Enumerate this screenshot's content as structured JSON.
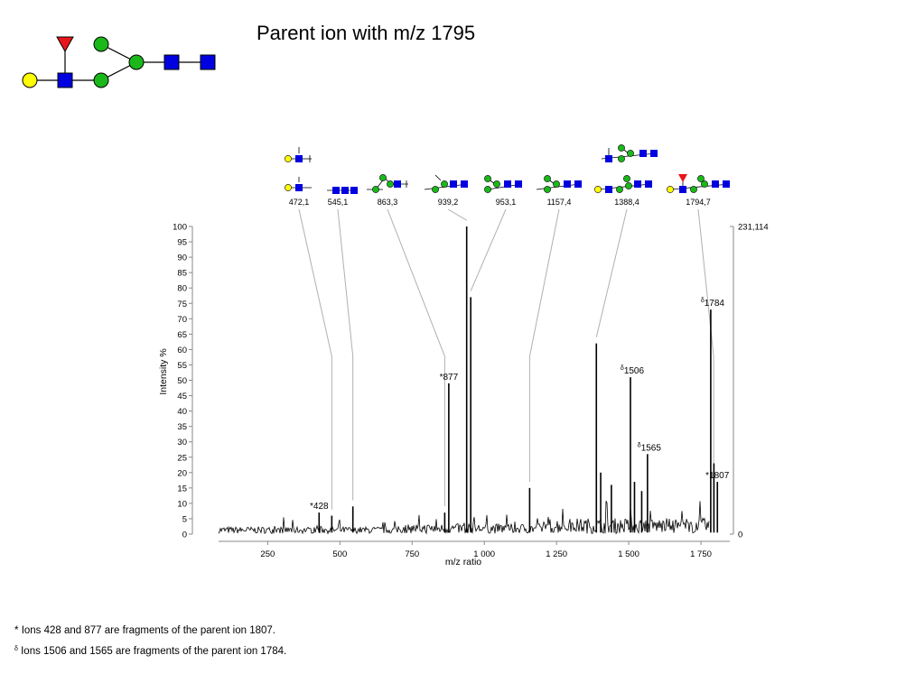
{
  "title": "Parent ion with m/z 1795",
  "chart_data": {
    "type": "line",
    "xlabel": "m/z ratio",
    "ylabel": "Intensity %",
    "xlim": [
      80,
      1850
    ],
    "ylim": [
      0,
      100
    ],
    "x_ticks": [
      "250",
      "500",
      "750",
      "1 000",
      "1 250",
      "1 500",
      "1 750"
    ],
    "x_tick_values": [
      250,
      500,
      750,
      1000,
      1250,
      1500,
      1750
    ],
    "y_ticks": [
      0,
      5,
      10,
      15,
      20,
      25,
      30,
      35,
      40,
      45,
      50,
      55,
      60,
      65,
      70,
      75,
      80,
      85,
      90,
      95,
      100
    ],
    "right_axis_labels": {
      "top": "231,114",
      "bottom": "0"
    },
    "peaks": [
      {
        "x": 428,
        "y": 7
      },
      {
        "x": 472,
        "y": 6
      },
      {
        "x": 545,
        "y": 9
      },
      {
        "x": 863,
        "y": 7
      },
      {
        "x": 877,
        "y": 49
      },
      {
        "x": 939,
        "y": 100
      },
      {
        "x": 953,
        "y": 77
      },
      {
        "x": 1157,
        "y": 15
      },
      {
        "x": 1388,
        "y": 62
      },
      {
        "x": 1403,
        "y": 20
      },
      {
        "x": 1440,
        "y": 16
      },
      {
        "x": 1506,
        "y": 51
      },
      {
        "x": 1520,
        "y": 17
      },
      {
        "x": 1545,
        "y": 14
      },
      {
        "x": 1565,
        "y": 26
      },
      {
        "x": 1784,
        "y": 73
      },
      {
        "x": 1795,
        "y": 23
      },
      {
        "x": 1807,
        "y": 17
      }
    ],
    "peak_labels": [
      {
        "text": "*428",
        "x": 428,
        "y": 7
      },
      {
        "text": "*877",
        "x": 877,
        "y": 49
      },
      {
        "text": "1784",
        "x": 1784,
        "y": 73,
        "prefix": "δ"
      },
      {
        "text": "1506",
        "x": 1506,
        "y": 51,
        "prefix": "δ"
      },
      {
        "text": "1565",
        "x": 1565,
        "y": 26,
        "prefix": "δ"
      },
      {
        "text": "*1807",
        "x": 1807,
        "y": 17
      }
    ],
    "fragment_labels": [
      {
        "text": "472,1",
        "x": 472
      },
      {
        "text": "545,1",
        "x": 545
      },
      {
        "text": "863,3",
        "x": 863
      },
      {
        "text": "939,2",
        "x": 939
      },
      {
        "text": "953,1",
        "x": 953
      },
      {
        "text": "1157,4",
        "x": 1157
      },
      {
        "text": "1388,4",
        "x": 1388
      },
      {
        "text": "1794,7",
        "x": 1794
      }
    ],
    "colors": {
      "trace": "#000000",
      "leader": "#b0b0b0",
      "axis": "#888888"
    }
  },
  "glycan_symbols": {
    "fucose": "#e8161b",
    "galactose": "#ffff00",
    "mannose": "#1ab81a",
    "glcnac": "#0000e0"
  },
  "footnotes": {
    "first": {
      "marker": "*",
      "text": "Ions 428 and 877 are fragments of the parent ion 1807."
    },
    "second": {
      "marker": "δ",
      "text": "Ions 1506 and 1565 are fragments of the parent ion 1784."
    }
  }
}
